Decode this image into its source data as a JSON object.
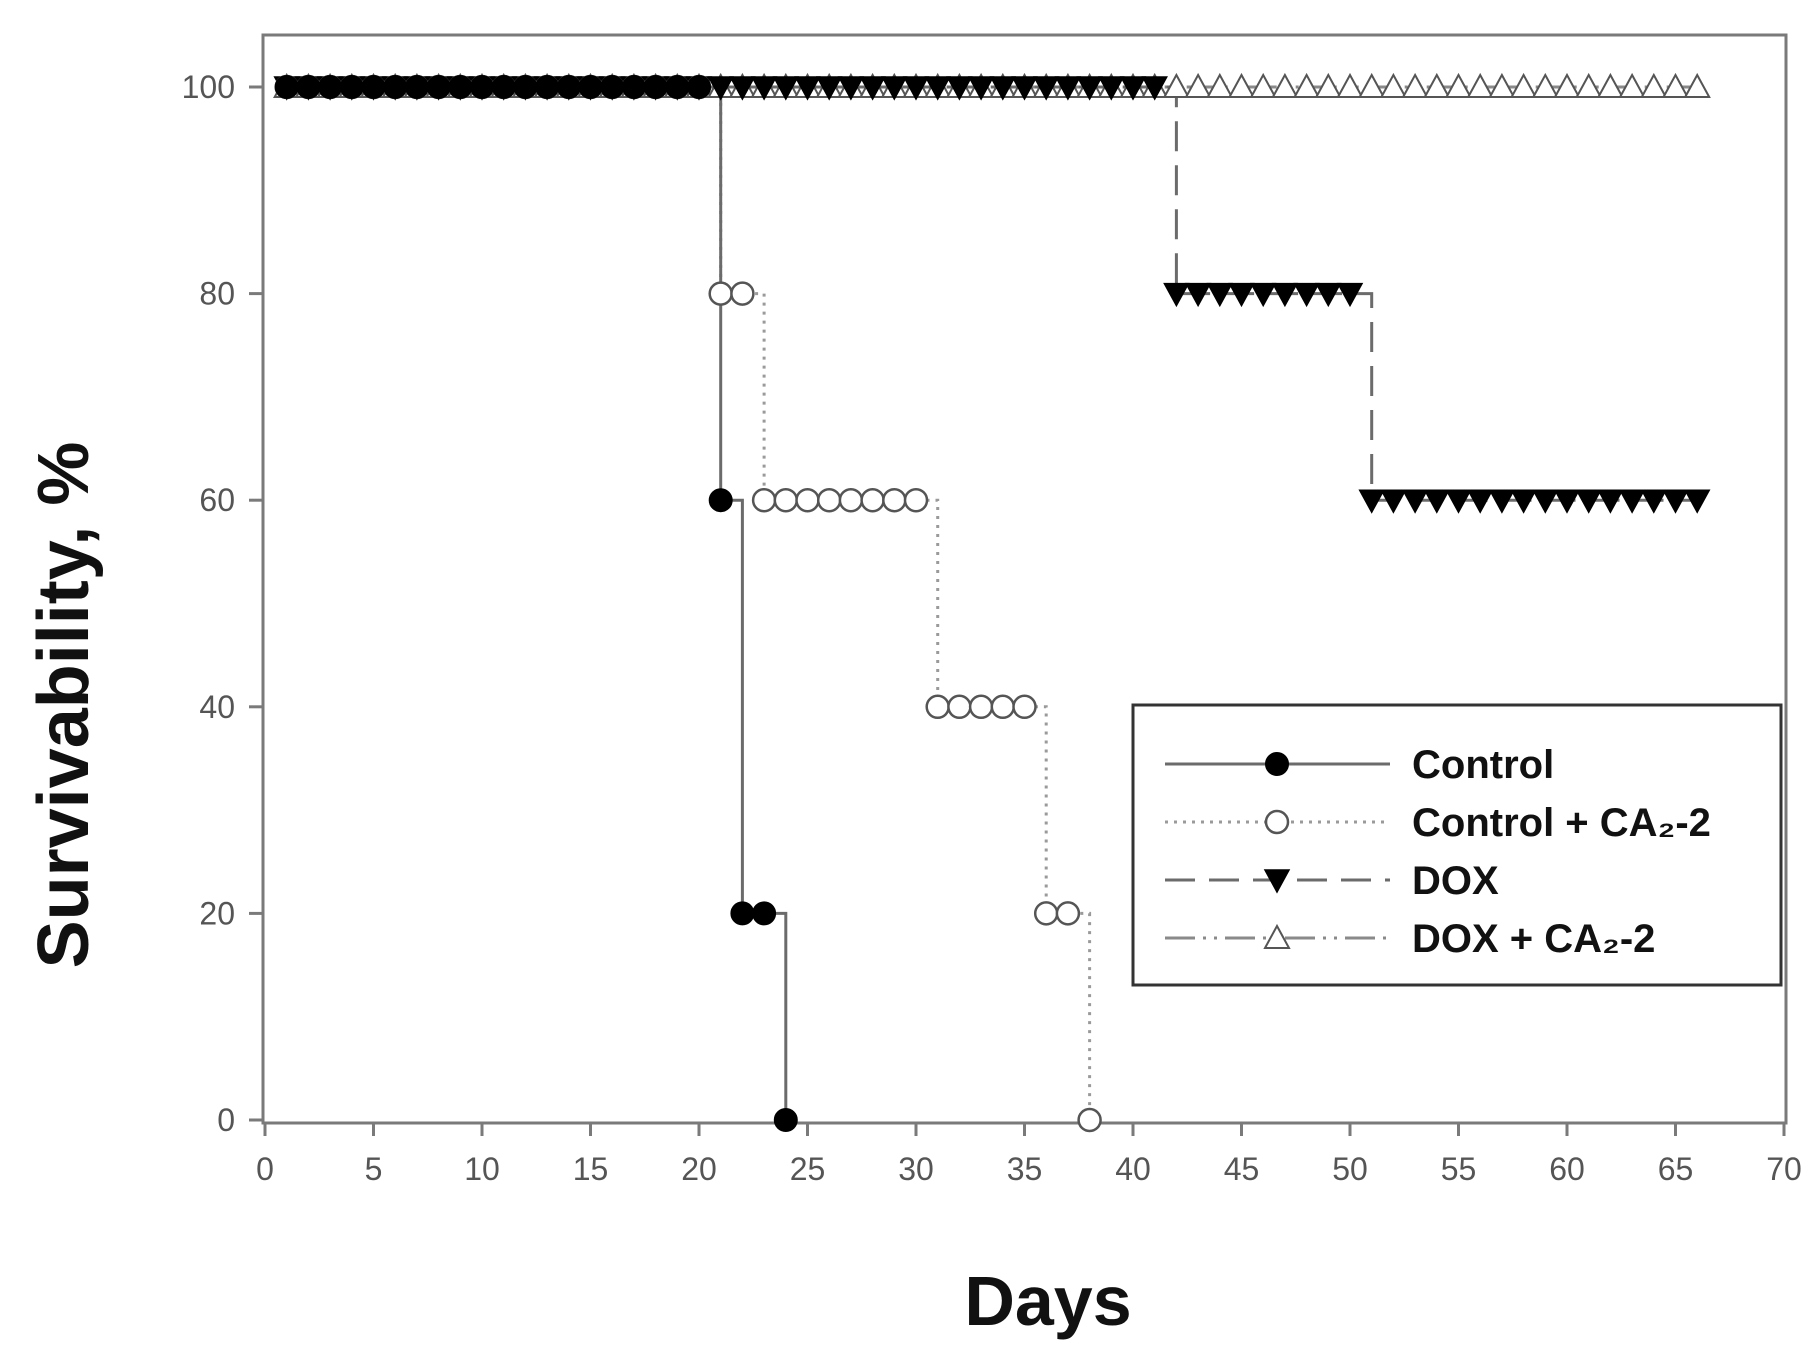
{
  "chart_data": {
    "type": "line",
    "step": true,
    "xlabel": "Days",
    "ylabel": "Survivability, %",
    "xlim": [
      0,
      70
    ],
    "ylim": [
      0,
      100
    ],
    "xticks": [
      0,
      5,
      10,
      15,
      20,
      25,
      30,
      35,
      40,
      45,
      50,
      55,
      60,
      65,
      70
    ],
    "yticks": [
      0,
      20,
      40,
      60,
      80,
      100
    ],
    "grid": false,
    "legend_position": "center-right",
    "series": [
      {
        "name": "Control",
        "marker": "filled-circle",
        "line_style": "solid",
        "x": [
          1,
          2,
          3,
          4,
          5,
          6,
          7,
          8,
          9,
          10,
          11,
          12,
          13,
          14,
          15,
          16,
          17,
          18,
          19,
          20,
          21,
          22,
          23,
          24
        ],
        "y": [
          100,
          100,
          100,
          100,
          100,
          100,
          100,
          100,
          100,
          100,
          100,
          100,
          100,
          100,
          100,
          100,
          100,
          100,
          100,
          100,
          60,
          20,
          20,
          0
        ]
      },
      {
        "name": "Control + CA₂-2",
        "marker": "open-circle",
        "line_style": "dotted",
        "x": [
          1,
          2,
          3,
          4,
          5,
          6,
          7,
          8,
          9,
          10,
          11,
          12,
          13,
          14,
          15,
          16,
          17,
          18,
          19,
          20,
          21,
          22,
          23,
          24,
          25,
          26,
          27,
          28,
          29,
          30,
          31,
          32,
          33,
          34,
          35,
          36,
          37,
          38
        ],
        "y": [
          100,
          100,
          100,
          100,
          100,
          100,
          100,
          100,
          100,
          100,
          100,
          100,
          100,
          100,
          100,
          100,
          100,
          100,
          100,
          100,
          80,
          80,
          60,
          60,
          60,
          60,
          60,
          60,
          60,
          60,
          40,
          40,
          40,
          40,
          40,
          20,
          20,
          0
        ]
      },
      {
        "name": "DOX",
        "marker": "filled-triangle-down",
        "line_style": "dashed",
        "x": [
          1,
          2,
          3,
          4,
          5,
          6,
          7,
          8,
          9,
          10,
          11,
          12,
          13,
          14,
          15,
          16,
          17,
          18,
          19,
          20,
          21,
          22,
          23,
          24,
          25,
          26,
          27,
          28,
          29,
          30,
          31,
          32,
          33,
          34,
          35,
          36,
          37,
          38,
          39,
          40,
          41,
          42,
          43,
          44,
          45,
          46,
          47,
          48,
          49,
          50,
          51,
          52,
          53,
          54,
          55,
          56,
          57,
          58,
          59,
          60,
          61,
          62,
          63,
          64,
          65,
          66
        ],
        "y": [
          100,
          100,
          100,
          100,
          100,
          100,
          100,
          100,
          100,
          100,
          100,
          100,
          100,
          100,
          100,
          100,
          100,
          100,
          100,
          100,
          100,
          100,
          100,
          100,
          100,
          100,
          100,
          100,
          100,
          100,
          100,
          100,
          100,
          100,
          100,
          100,
          100,
          100,
          100,
          100,
          100,
          80,
          80,
          80,
          80,
          80,
          80,
          80,
          80,
          80,
          60,
          60,
          60,
          60,
          60,
          60,
          60,
          60,
          60,
          60,
          60,
          60,
          60,
          60,
          60,
          60
        ]
      },
      {
        "name": "DOX + CA₂-2",
        "marker": "open-triangle-up",
        "line_style": "dash-dot-dot",
        "x": [
          1,
          2,
          3,
          4,
          5,
          6,
          7,
          8,
          9,
          10,
          11,
          12,
          13,
          14,
          15,
          16,
          17,
          18,
          19,
          20,
          21,
          22,
          23,
          24,
          25,
          26,
          27,
          28,
          29,
          30,
          31,
          32,
          33,
          34,
          35,
          36,
          37,
          38,
          39,
          40,
          41,
          42,
          43,
          44,
          45,
          46,
          47,
          48,
          49,
          50,
          51,
          52,
          53,
          54,
          55,
          56,
          57,
          58,
          59,
          60,
          61,
          62,
          63,
          64,
          65,
          66
        ],
        "y": [
          100,
          100,
          100,
          100,
          100,
          100,
          100,
          100,
          100,
          100,
          100,
          100,
          100,
          100,
          100,
          100,
          100,
          100,
          100,
          100,
          100,
          100,
          100,
          100,
          100,
          100,
          100,
          100,
          100,
          100,
          100,
          100,
          100,
          100,
          100,
          100,
          100,
          100,
          100,
          100,
          100,
          100,
          100,
          100,
          100,
          100,
          100,
          100,
          100,
          100,
          100,
          100,
          100,
          100,
          100,
          100,
          100,
          100,
          100,
          100,
          100,
          100,
          100,
          100,
          100,
          100
        ]
      }
    ]
  }
}
